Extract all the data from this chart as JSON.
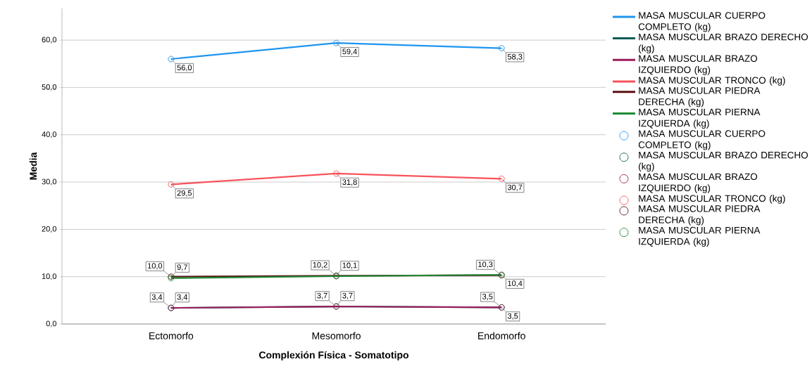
{
  "chart_data": {
    "type": "line",
    "xlabel": "Complexión Física - Somatotipo",
    "ylabel": "Media",
    "categories": [
      "Ectomorfo",
      "Mesomorfo",
      "Endomorfo"
    ],
    "ylim": [
      0,
      66.7
    ],
    "yticks": [
      {
        "value": 0,
        "label": "0,0"
      },
      {
        "value": 10,
        "label": "10,0"
      },
      {
        "value": 20,
        "label": "20,0"
      },
      {
        "value": 30,
        "label": "30,0"
      },
      {
        "value": 40,
        "label": "40,0"
      },
      {
        "value": 50,
        "label": "50,0"
      },
      {
        "value": 60,
        "label": "60,0"
      }
    ],
    "grid": "y",
    "legend": "right",
    "series": [
      {
        "type": "line",
        "marker": "none",
        "name": "MASA MUSCULAR CUERPO COMPLETO (kg)",
        "color": "#1e96f0",
        "values": [
          56.0,
          59.4,
          58.3
        ]
      },
      {
        "type": "line",
        "marker": "none",
        "name": "MASA MUSCULAR BRAZO DERECHO (kg)",
        "color": "#0d5c55",
        "values": [
          3.4,
          3.7,
          3.5
        ]
      },
      {
        "type": "line",
        "marker": "none",
        "name": "MASA MUSCULAR BRAZO IZQUIERDO (kg)",
        "color": "#9c1d5a",
        "values": [
          3.4,
          3.7,
          3.5
        ]
      },
      {
        "type": "line",
        "marker": "none",
        "name": "MASA MUSCULAR TRONCO (kg)",
        "color": "#f9525b",
        "values": [
          29.5,
          31.8,
          30.7
        ]
      },
      {
        "type": "line",
        "marker": "none",
        "name": "MASA MUSCULAR PIEDRA DERECHA (kg)",
        "color": "#5a0f14",
        "values": [
          10.0,
          10.2,
          10.3
        ]
      },
      {
        "type": "line",
        "marker": "none",
        "name": "MASA MUSCULAR PIERNA IZQUIERDA (kg)",
        "color": "#1f8a35",
        "values": [
          9.7,
          10.1,
          10.4
        ]
      },
      {
        "type": "scatter",
        "marker": "circle",
        "name": "MASA MUSCULAR CUERPO COMPLETO (kg)",
        "color": "#1e96f0",
        "values": [
          56.0,
          59.4,
          58.3
        ],
        "value_labels": [
          "56,0",
          "59,4",
          "58,3"
        ]
      },
      {
        "type": "scatter",
        "marker": "circle",
        "name": "MASA MUSCULAR BRAZO DERECHO (kg)",
        "color": "#0d5c55",
        "values": [
          3.4,
          3.7,
          3.5
        ],
        "value_labels": [
          "3,4",
          "3,7",
          "3,5"
        ]
      },
      {
        "type": "scatter",
        "marker": "circle",
        "name": "MASA MUSCULAR BRAZO IZQUIERDO (kg)",
        "color": "#9c1d5a",
        "values": [
          3.4,
          3.7,
          3.5
        ],
        "value_labels": [
          "3,4",
          "3,7",
          "3,5"
        ]
      },
      {
        "type": "scatter",
        "marker": "circle",
        "name": "MASA MUSCULAR TRONCO (kg)",
        "color": "#f9525b",
        "values": [
          29.5,
          31.8,
          30.7
        ],
        "value_labels": [
          "29,5",
          "31,8",
          "30,7"
        ]
      },
      {
        "type": "scatter",
        "marker": "circle",
        "name": "MASA MUSCULAR PIEDRA DERECHA (kg)",
        "color": "#5a0f14",
        "values": [
          10.0,
          10.2,
          10.3
        ],
        "value_labels": [
          "10,0",
          "10,2",
          "10,3"
        ]
      },
      {
        "type": "scatter",
        "marker": "circle",
        "name": "MASA MUSCULAR PIERNA IZQUIERDA (kg)",
        "color": "#1f8a35",
        "values": [
          9.7,
          10.1,
          10.4
        ],
        "value_labels": [
          "9,7",
          "10,1",
          "10,4"
        ]
      }
    ]
  }
}
